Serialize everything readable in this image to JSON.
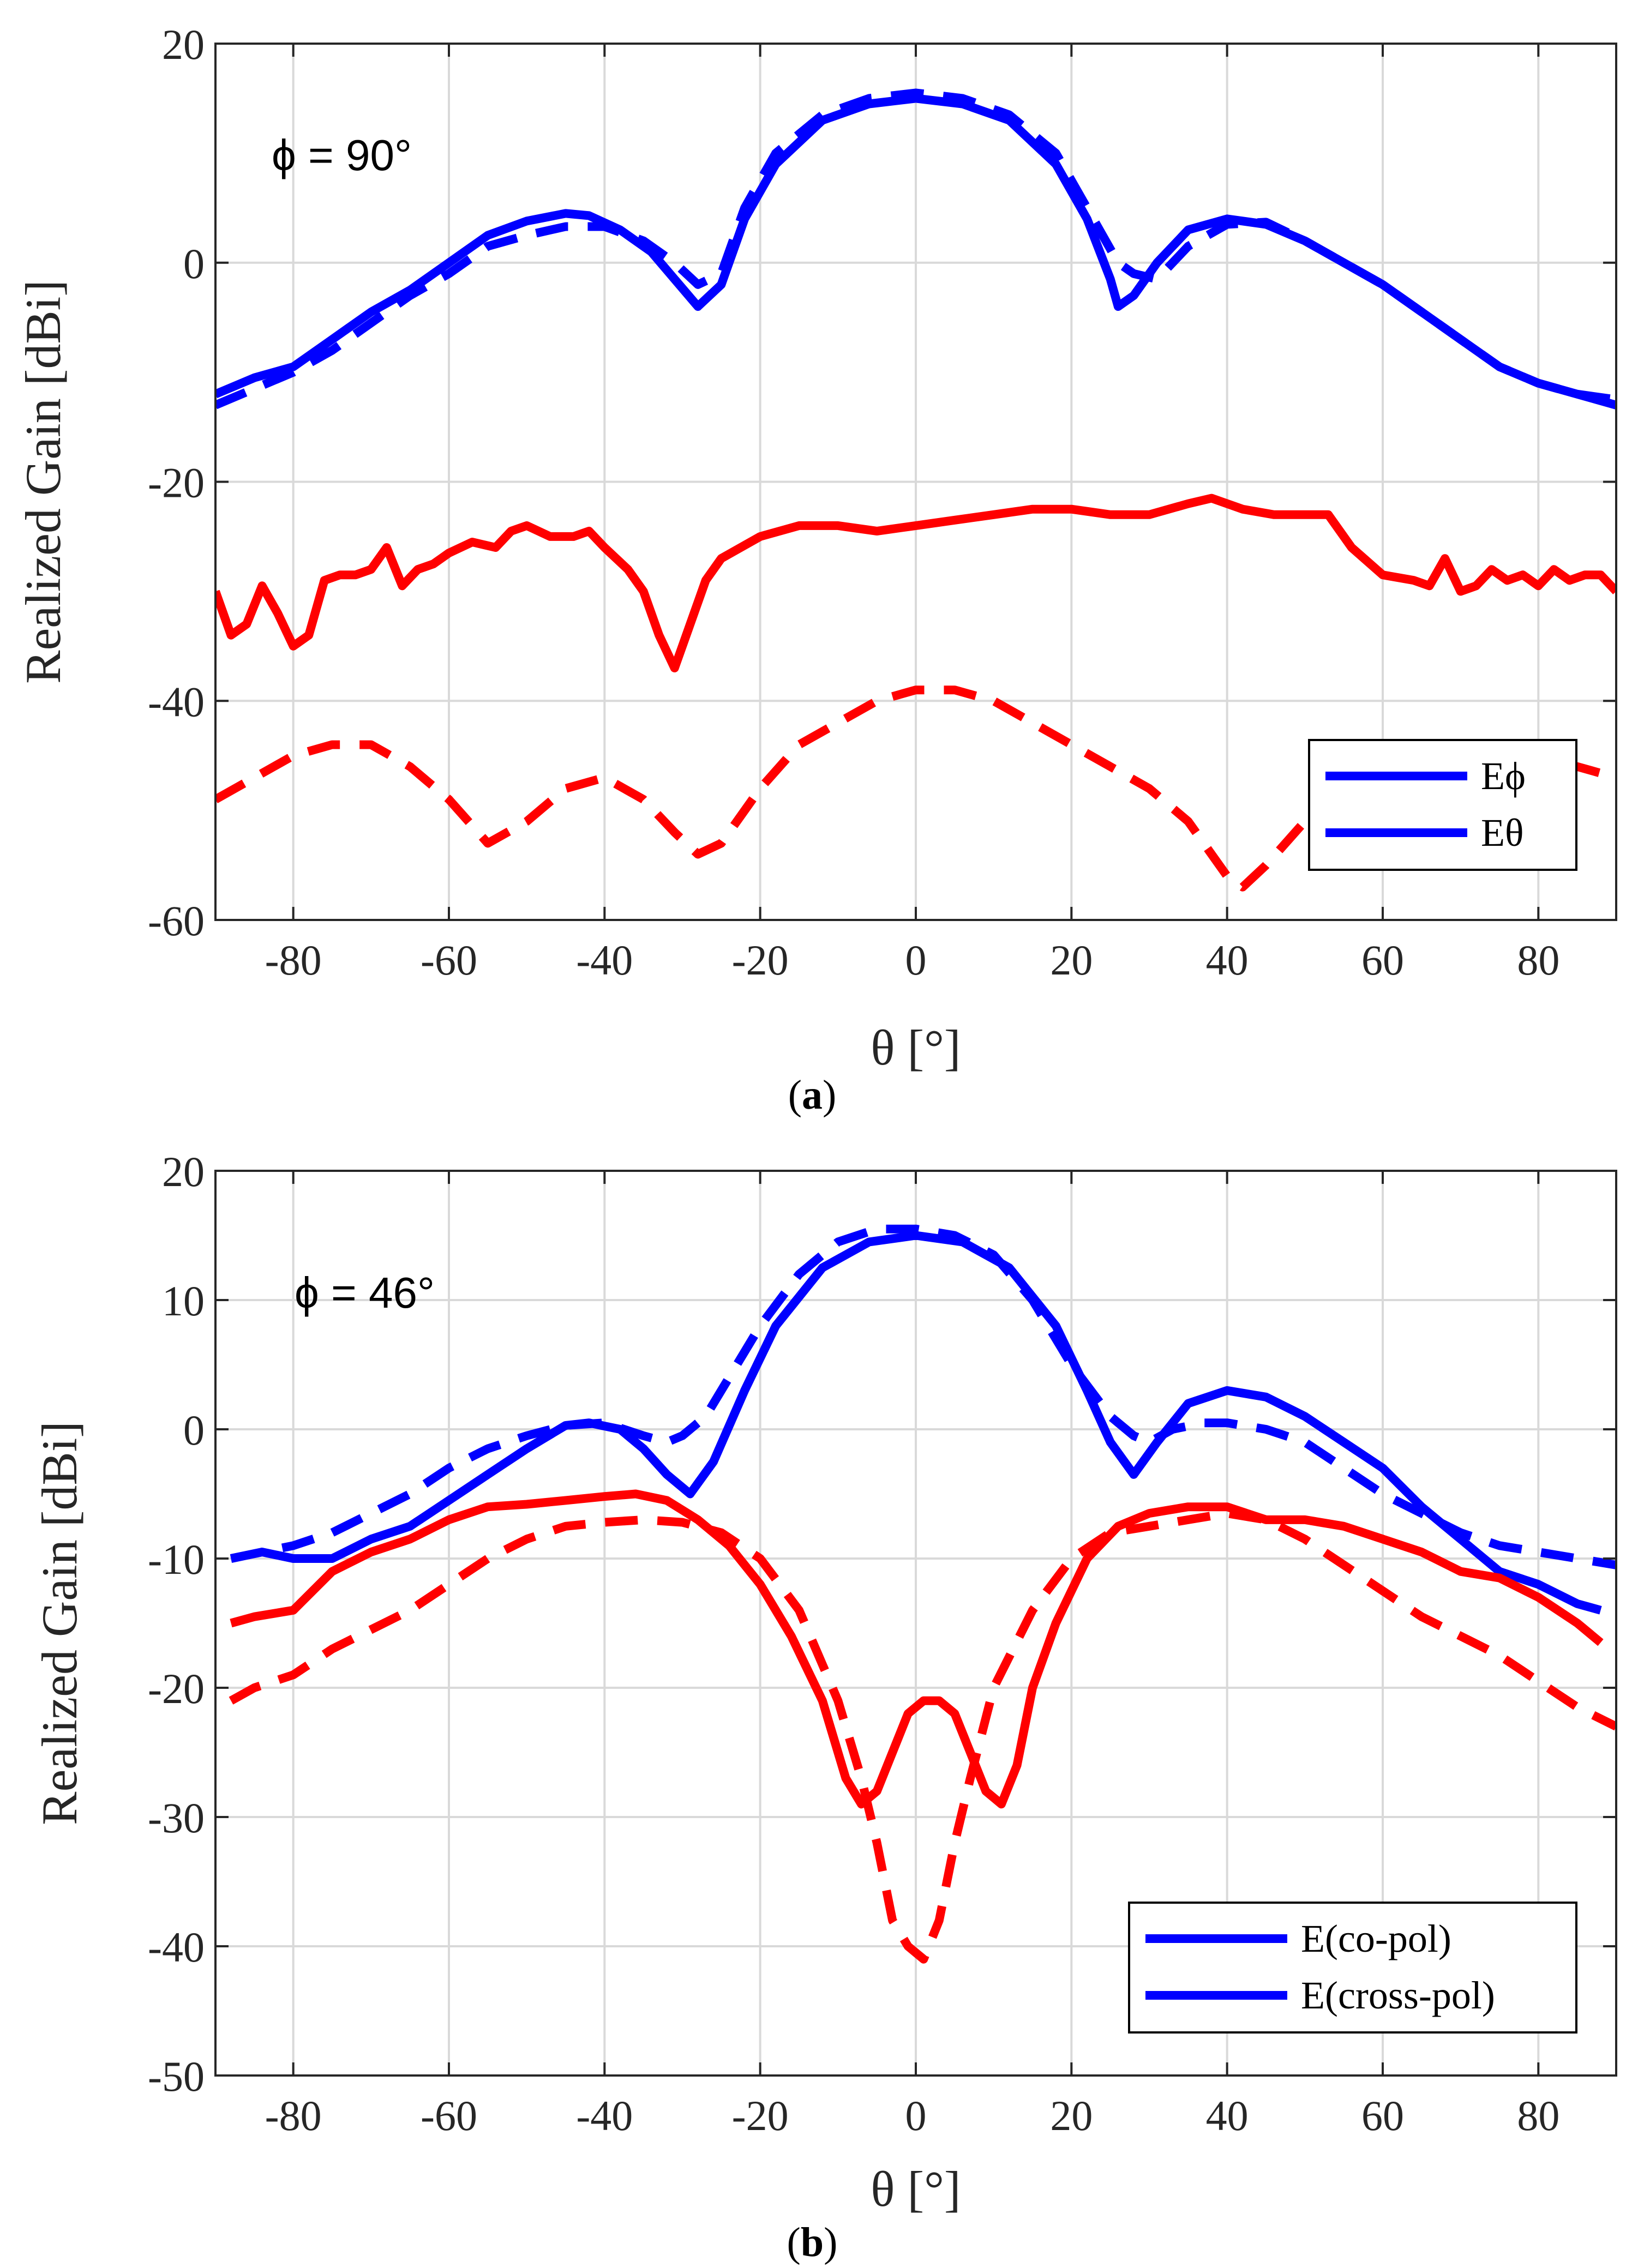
{
  "chart_data": [
    {
      "type": "line",
      "panel_label": "a",
      "annotation": "ϕ = 90°",
      "xlabel": "θ [°]",
      "ylabel": "Realized Gain [dBi]",
      "xlim": [
        -90,
        90
      ],
      "ylim": [
        -60,
        20
      ],
      "xticks": [
        -80,
        -60,
        -40,
        -20,
        0,
        20,
        40,
        60,
        80
      ],
      "yticks": [
        -60,
        -40,
        -20,
        0,
        20
      ],
      "grid": true,
      "legend_position": "bottom-right",
      "legend": [
        "Eϕ",
        "Eθ"
      ],
      "series": [
        {
          "name": "Eϕ",
          "style": "solid",
          "color": "#0000ff",
          "x": [
            -90,
            -85,
            -80,
            -75,
            -70,
            -65,
            -60,
            -55,
            -50,
            -45,
            -42,
            -38,
            -34,
            -31,
            -28,
            -25,
            -22,
            -18,
            -12,
            -6,
            0,
            6,
            12,
            18,
            22,
            25,
            26,
            28,
            31,
            35,
            40,
            45,
            50,
            55,
            60,
            65,
            70,
            75,
            80,
            85,
            90
          ],
          "y": [
            -12,
            -10.5,
            -9.5,
            -7,
            -4.5,
            -2.5,
            0,
            2.5,
            3.8,
            4.5,
            4.3,
            3,
            1,
            -1.5,
            -4,
            -2,
            4,
            9,
            13,
            14.5,
            15,
            14.5,
            13,
            9,
            4,
            -1.5,
            -4,
            -3,
            0,
            3,
            4,
            3.5,
            2,
            0,
            -2,
            -4.5,
            -7,
            -9.5,
            -11,
            -12,
            -13
          ]
        },
        {
          "name": "Eϕ (dashed)",
          "style": "dashed",
          "color": "#0000ff",
          "x": [
            -90,
            -85,
            -80,
            -75,
            -70,
            -65,
            -60,
            -55,
            -50,
            -45,
            -40,
            -35,
            -31,
            -28,
            -25,
            -22,
            -18,
            -12,
            -6,
            0,
            6,
            12,
            18,
            22,
            26,
            28,
            31,
            35,
            40,
            45,
            50,
            55,
            60,
            65,
            70,
            75,
            80,
            85,
            90
          ],
          "y": [
            -13,
            -11.5,
            -10,
            -8,
            -5.5,
            -3,
            -1,
            1.5,
            2.5,
            3.3,
            3.3,
            2,
            0,
            -2,
            -1,
            5,
            10,
            13.5,
            15,
            15.5,
            15,
            13.5,
            10,
            5,
            0,
            -1,
            -1.5,
            1.5,
            3.5,
            3.7,
            2,
            0,
            -2,
            -4.5,
            -7,
            -9.5,
            -11,
            -12,
            -12.5
          ]
        },
        {
          "name": "Eθ",
          "style": "solid",
          "color": "#ff0000",
          "x": [
            -90,
            -88,
            -86,
            -84,
            -82,
            -80,
            -78,
            -76,
            -74,
            -72,
            -70,
            -68,
            -66,
            -64,
            -62,
            -60,
            -57,
            -54,
            -52,
            -50,
            -47,
            -44,
            -42,
            -40,
            -37,
            -35,
            -33,
            -31,
            -29,
            -27,
            -25,
            -20,
            -15,
            -10,
            -5,
            0,
            5,
            10,
            15,
            20,
            25,
            30,
            35,
            38,
            42,
            46,
            50,
            53,
            56,
            60,
            64,
            66,
            68,
            70,
            72,
            74,
            76,
            78,
            80,
            82,
            84,
            86,
            88,
            90
          ],
          "y": [
            -30,
            -34,
            -33,
            -29.5,
            -32,
            -35,
            -34,
            -29,
            -28.5,
            -28.5,
            -28,
            -26,
            -29.5,
            -28,
            -27.5,
            -26.5,
            -25.5,
            -26,
            -24.5,
            -24,
            -25,
            -25,
            -24.5,
            -26,
            -28,
            -30,
            -34,
            -37,
            -33,
            -29,
            -27,
            -25,
            -24,
            -24,
            -24.5,
            -24,
            -23.5,
            -23,
            -22.5,
            -22.5,
            -23,
            -23,
            -22,
            -21.5,
            -22.5,
            -23,
            -23,
            -23,
            -26,
            -28.5,
            -29,
            -29.5,
            -27,
            -30,
            -29.5,
            -28,
            -29,
            -28.5,
            -29.5,
            -28,
            -29,
            -28.5,
            -28.5,
            -30
          ]
        },
        {
          "name": "Eθ (dashed)",
          "style": "dashed",
          "color": "#ff0000",
          "x": [
            -90,
            -85,
            -80,
            -75,
            -70,
            -65,
            -60,
            -55,
            -50,
            -45,
            -40,
            -35,
            -31,
            -28,
            -25,
            -20,
            -15,
            -10,
            -5,
            0,
            5,
            10,
            15,
            20,
            25,
            30,
            35,
            40,
            42,
            45,
            50,
            55,
            60,
            65,
            70,
            75,
            80,
            85,
            90
          ],
          "y": [
            -49,
            -47,
            -45,
            -44,
            -44,
            -46,
            -49,
            -53,
            -51,
            -48,
            -47,
            -49,
            -52,
            -54,
            -53,
            -48,
            -44,
            -42,
            -40,
            -39,
            -39,
            -40,
            -42,
            -44,
            -46,
            -48,
            -51,
            -56,
            -57,
            -55,
            -51,
            -49,
            -47,
            -46,
            -46,
            -46,
            -46,
            -46,
            -47
          ]
        }
      ]
    },
    {
      "type": "line",
      "panel_label": "b",
      "annotation": "ϕ = 46°",
      "xlabel": "θ [°]",
      "ylabel": "Realized Gain [dBi]",
      "xlim": [
        -90,
        90
      ],
      "ylim": [
        -50,
        20
      ],
      "xticks": [
        -80,
        -60,
        -40,
        -20,
        0,
        20,
        40,
        60,
        80
      ],
      "yticks": [
        -50,
        -40,
        -30,
        -20,
        -10,
        0,
        10,
        20
      ],
      "grid": true,
      "legend_position": "bottom-right",
      "legend": [
        "E(co-pol)",
        "E(cross-pol)"
      ],
      "series": [
        {
          "name": "E(co-pol)",
          "style": "solid",
          "color": "#0000ff",
          "x": [
            -88,
            -84,
            -80,
            -75,
            -70,
            -65,
            -60,
            -55,
            -50,
            -45,
            -42,
            -38,
            -35,
            -32,
            -29,
            -26,
            -22,
            -18,
            -12,
            -6,
            0,
            6,
            12,
            18,
            22,
            25,
            28,
            31,
            35,
            40,
            45,
            50,
            55,
            60,
            65,
            70,
            75,
            80,
            85,
            88
          ],
          "y": [
            -10,
            -9.5,
            -10,
            -10,
            -8.5,
            -7.5,
            -5.5,
            -3.5,
            -1.5,
            0.3,
            0.5,
            0,
            -1.5,
            -3.5,
            -5,
            -2.5,
            3,
            8,
            12.5,
            14.5,
            15,
            14.5,
            12.5,
            8,
            3,
            -1,
            -3.5,
            -1,
            2,
            3,
            2.5,
            1,
            -1,
            -3,
            -6,
            -8.5,
            -11,
            -12,
            -13.5,
            -14
          ]
        },
        {
          "name": "E(co-pol) (dashed)",
          "style": "dashed",
          "color": "#0000ff",
          "x": [
            -88,
            -84,
            -80,
            -75,
            -70,
            -65,
            -60,
            -55,
            -50,
            -45,
            -40,
            -35,
            -32,
            -30,
            -27,
            -24,
            -20,
            -15,
            -10,
            -5,
            0,
            5,
            10,
            15,
            20,
            25,
            28,
            30,
            33,
            37,
            40,
            45,
            50,
            55,
            60,
            65,
            70,
            75,
            80,
            85,
            90
          ],
          "y": [
            -10,
            -9.5,
            -9,
            -8,
            -6.5,
            -5,
            -3,
            -1.5,
            -0.5,
            0.3,
            0.5,
            -0.5,
            -1,
            -0.5,
            1,
            4,
            8,
            12,
            14.5,
            15.5,
            15.5,
            15,
            13.5,
            10,
            5,
            1,
            -0.5,
            -1,
            0,
            0.5,
            0.5,
            0,
            -1,
            -3,
            -5,
            -6.5,
            -8,
            -9,
            -9.5,
            -10,
            -10.5
          ]
        },
        {
          "name": "E(cross-pol)",
          "style": "solid",
          "color": "#ff0000",
          "x": [
            -88,
            -85,
            -80,
            -75,
            -70,
            -65,
            -60,
            -55,
            -50,
            -45,
            -40,
            -36,
            -32,
            -28,
            -24,
            -20,
            -16,
            -12,
            -9,
            -7,
            -5,
            -3,
            -1,
            1,
            3,
            5,
            7,
            9,
            11,
            13,
            15,
            18,
            22,
            26,
            30,
            35,
            40,
            45,
            50,
            55,
            60,
            65,
            70,
            75,
            80,
            85,
            88
          ],
          "y": [
            -15,
            -14.5,
            -14,
            -11,
            -9.5,
            -8.5,
            -7,
            -6,
            -5.8,
            -5.5,
            -5.2,
            -5,
            -5.5,
            -7,
            -9,
            -12,
            -16,
            -21,
            -27,
            -29,
            -28,
            -25,
            -22,
            -21,
            -21,
            -22,
            -25,
            -28,
            -29,
            -26,
            -20,
            -15,
            -10,
            -7.5,
            -6.5,
            -6,
            -6,
            -7,
            -7,
            -7.5,
            -8.5,
            -9.5,
            -11,
            -11.5,
            -13,
            -15,
            -16.5
          ]
        },
        {
          "name": "E(cross-pol) (dashed)",
          "style": "dashed",
          "color": "#ff0000",
          "x": [
            -88,
            -85,
            -80,
            -75,
            -70,
            -65,
            -60,
            -55,
            -50,
            -45,
            -40,
            -35,
            -30,
            -25,
            -20,
            -15,
            -10,
            -7,
            -5,
            -3,
            -1,
            1,
            3,
            5,
            7,
            10,
            15,
            20,
            25,
            30,
            35,
            40,
            45,
            50,
            55,
            60,
            65,
            70,
            75,
            80,
            85,
            90
          ],
          "y": [
            -21,
            -20,
            -19,
            -17,
            -15.5,
            -14,
            -12,
            -10,
            -8.5,
            -7.5,
            -7.2,
            -7,
            -7.2,
            -8,
            -10,
            -14,
            -21,
            -27,
            -32,
            -38,
            -40,
            -41,
            -38,
            -32,
            -27,
            -20,
            -14,
            -10,
            -8,
            -7.5,
            -7,
            -6.5,
            -7,
            -8.5,
            -10.5,
            -12.5,
            -14.5,
            -16,
            -17.5,
            -19.5,
            -21.5,
            -23
          ]
        }
      ]
    }
  ]
}
